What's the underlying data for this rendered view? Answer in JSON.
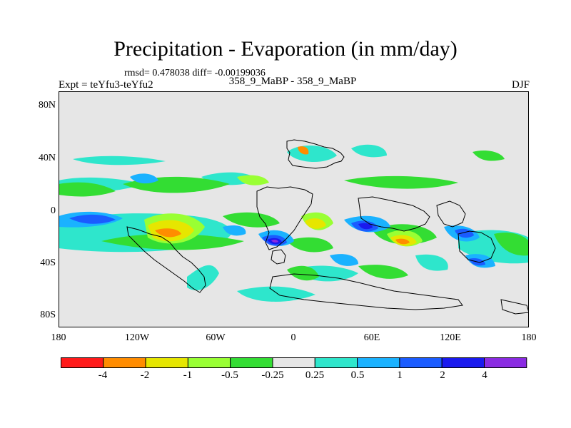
{
  "title": "Precipitation - Evaporation (in mm/day)",
  "stats": "rmsd= 0.478038 diff= -0.00199036",
  "expt": "Expt = teYfu3-teYfu2",
  "period": "358_9_MaBP - 358_9_MaBP",
  "season": "DJF",
  "lat_labels": [
    "80N",
    "40N",
    "0",
    "40S",
    "80S"
  ],
  "lon_labels": [
    "180",
    "120W",
    "60W",
    "0",
    "60E",
    "120E",
    "180"
  ],
  "colorbar": {
    "colors": [
      "#ff1a1a",
      "#ff8c00",
      "#e6e600",
      "#99ff33",
      "#33dd33",
      "#e6e6e6",
      "#2ee6cc",
      "#1ab2ff",
      "#1a5cff",
      "#1a1aee",
      "#8a2be2"
    ],
    "levels": [
      "-4",
      "-2",
      "-1",
      "-0.5",
      "-0.25",
      "0.25",
      "0.5",
      "1",
      "2",
      "4"
    ]
  }
}
